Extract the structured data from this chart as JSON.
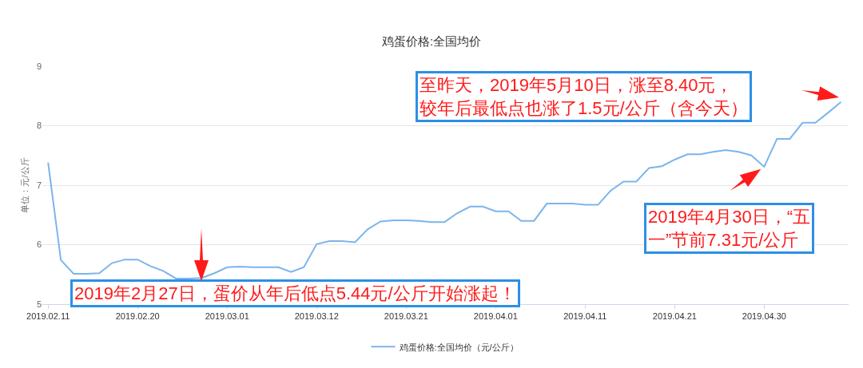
{
  "chart_data": {
    "type": "line",
    "title": "鸡蛋价格:全国均价",
    "ylabel": "单位：元/公斤",
    "categories": [
      "2019.02.11",
      null,
      null,
      null,
      null,
      null,
      null,
      "2019.02.20",
      null,
      null,
      null,
      null,
      null,
      null,
      "2019.03.01",
      null,
      null,
      null,
      null,
      null,
      null,
      "2019.03.12",
      null,
      null,
      null,
      null,
      null,
      null,
      "2019.03.21",
      null,
      null,
      null,
      null,
      null,
      null,
      "2019.04.01",
      null,
      null,
      null,
      null,
      null,
      null,
      "2019.04.11",
      null,
      null,
      null,
      null,
      null,
      null,
      "2019.04.21",
      null,
      null,
      null,
      null,
      null,
      null,
      "2019.04.30",
      null,
      null,
      null,
      null,
      null,
      null
    ],
    "series": [
      {
        "name": "鸡蛋价格:全国均价（元/公斤）",
        "color": "#7cb5ec",
        "values": [
          7.38,
          5.74,
          5.51,
          5.51,
          5.52,
          5.69,
          5.75,
          5.75,
          5.64,
          5.56,
          5.43,
          5.43,
          5.44,
          5.52,
          5.62,
          5.63,
          5.62,
          5.62,
          5.62,
          5.54,
          5.62,
          6.01,
          6.06,
          6.06,
          6.04,
          6.26,
          6.39,
          6.41,
          6.41,
          6.4,
          6.38,
          6.38,
          6.53,
          6.64,
          6.64,
          6.56,
          6.56,
          6.4,
          6.4,
          6.69,
          6.69,
          6.69,
          6.67,
          6.67,
          6.91,
          7.06,
          7.06,
          7.29,
          7.32,
          7.43,
          7.52,
          7.52,
          7.56,
          7.59,
          7.56,
          7.5,
          7.31,
          7.78,
          7.78,
          8.05,
          8.05,
          8.22,
          8.4
        ]
      }
    ],
    "ylim": [
      5,
      9
    ],
    "yticks": [
      5,
      6,
      7,
      8,
      9
    ],
    "grid": "y",
    "legend": "bottom",
    "marker": "none",
    "line_style": "solid",
    "annotations": [
      "2019年2月27日，蛋价从年后低点5.44元/公斤开始涨起！",
      "至昨天，2019年5月10日，涨至8.40元，较年后最低点也涨了1.5元/公斤（含今天）",
      {
        "text": "2019年4月30日，“五一”节前7.31元/公斤",
        "x": "2019.04.30",
        "y": 7.31
      }
    ]
  }
}
